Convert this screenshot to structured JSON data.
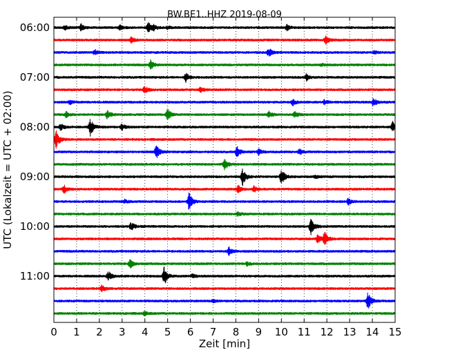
{
  "chart_data": {
    "type": "line",
    "title": "BW.BE1..HHZ 2019-08-09",
    "xlabel": "Zeit  [min]",
    "ylabel": "UTC (Lokalzeit = UTC + 02:00)",
    "xlim": [
      0,
      15
    ],
    "x_ticks": [
      "0",
      "1",
      "2",
      "3",
      "4",
      "5",
      "6",
      "7",
      "8",
      "9",
      "10",
      "11",
      "12",
      "13",
      "14",
      "15"
    ],
    "y_ticks": [
      "06:00",
      "07:00",
      "08:00",
      "09:00",
      "10:00",
      "11:00"
    ],
    "grid": "vertical dotted",
    "trace_interval_minutes": 15,
    "colors_cycle": [
      "#000000",
      "#ff0000",
      "#0000ff",
      "#008000"
    ],
    "series": [
      {
        "start": "06:00",
        "color": "#000000",
        "events": [
          [
            0.5,
            0.25
          ],
          [
            1.2,
            0.35
          ],
          [
            2.9,
            0.25
          ],
          [
            4.15,
            0.6
          ],
          [
            4.4,
            0.2
          ],
          [
            5.0,
            0.15
          ],
          [
            10.25,
            0.3
          ]
        ]
      },
      {
        "start": "06:15",
        "color": "#ff0000",
        "events": [
          [
            3.4,
            0.3
          ],
          [
            11.95,
            0.4
          ]
        ]
      },
      {
        "start": "06:30",
        "color": "#0000ff",
        "events": [
          [
            1.8,
            0.3
          ],
          [
            9.45,
            0.5
          ],
          [
            14.1,
            0.15
          ]
        ]
      },
      {
        "start": "06:45",
        "color": "#008000",
        "events": [
          [
            4.25,
            0.5
          ],
          [
            11.75,
            0.15
          ]
        ]
      },
      {
        "start": "07:00",
        "color": "#000000",
        "events": [
          [
            5.8,
            0.5
          ],
          [
            11.1,
            0.35
          ]
        ]
      },
      {
        "start": "07:15",
        "color": "#ff0000",
        "events": [
          [
            4.0,
            0.4
          ],
          [
            6.45,
            0.25
          ]
        ]
      },
      {
        "start": "07:30",
        "color": "#0000ff",
        "events": [
          [
            0.7,
            0.2
          ],
          [
            10.5,
            0.35
          ],
          [
            11.9,
            0.25
          ],
          [
            14.05,
            0.45
          ]
        ]
      },
      {
        "start": "07:45",
        "color": "#008000",
        "events": [
          [
            0.55,
            0.3
          ],
          [
            2.35,
            0.45
          ],
          [
            5.0,
            0.6
          ],
          [
            9.45,
            0.35
          ],
          [
            10.6,
            0.3
          ]
        ]
      },
      {
        "start": "08:00",
        "color": "#000000",
        "events": [
          [
            0.3,
            0.35
          ],
          [
            1.6,
            0.95
          ],
          [
            3.0,
            0.3
          ],
          [
            14.9,
            0.55
          ]
        ]
      },
      {
        "start": "08:15",
        "color": "#ff0000",
        "events": [
          [
            0.1,
            1.0
          ]
        ]
      },
      {
        "start": "08:30",
        "color": "#0000ff",
        "events": [
          [
            4.5,
            0.75
          ],
          [
            8.05,
            0.6
          ],
          [
            9.0,
            0.3
          ],
          [
            10.8,
            0.3
          ]
        ]
      },
      {
        "start": "08:45",
        "color": "#008000",
        "events": [
          [
            7.5,
            0.7
          ]
        ]
      },
      {
        "start": "09:00",
        "color": "#000000",
        "events": [
          [
            8.3,
            0.9
          ],
          [
            10.0,
            0.9
          ],
          [
            11.5,
            0.2
          ]
        ]
      },
      {
        "start": "09:15",
        "color": "#ff0000",
        "events": [
          [
            0.45,
            0.45
          ],
          [
            8.1,
            0.4
          ],
          [
            8.8,
            0.3
          ]
        ]
      },
      {
        "start": "09:30",
        "color": "#0000ff",
        "events": [
          [
            3.1,
            0.2
          ],
          [
            5.95,
            1.0
          ],
          [
            12.95,
            0.35
          ]
        ]
      },
      {
        "start": "09:45",
        "color": "#008000",
        "events": [
          [
            8.1,
            0.2
          ]
        ]
      },
      {
        "start": "10:00",
        "color": "#000000",
        "events": [
          [
            3.4,
            0.45
          ],
          [
            11.3,
            1.0
          ]
        ]
      },
      {
        "start": "10:15",
        "color": "#ff0000",
        "events": [
          [
            11.6,
            0.45
          ],
          [
            11.9,
            0.75
          ]
        ]
      },
      {
        "start": "10:30",
        "color": "#0000ff",
        "events": [
          [
            7.7,
            0.45
          ]
        ]
      },
      {
        "start": "10:45",
        "color": "#008000",
        "events": [
          [
            3.35,
            0.5
          ],
          [
            8.5,
            0.2
          ]
        ]
      },
      {
        "start": "11:00",
        "color": "#000000",
        "events": [
          [
            2.4,
            0.5
          ],
          [
            4.85,
            1.0
          ],
          [
            6.1,
            0.2
          ]
        ]
      },
      {
        "start": "11:15",
        "color": "#ff0000",
        "events": [
          [
            2.1,
            0.35
          ]
        ]
      },
      {
        "start": "11:30",
        "color": "#0000ff",
        "events": [
          [
            7.0,
            0.15
          ],
          [
            13.8,
            1.0
          ]
        ]
      },
      {
        "start": "11:45",
        "color": "#008000",
        "events": [
          [
            4.0,
            0.2
          ]
        ]
      }
    ]
  }
}
